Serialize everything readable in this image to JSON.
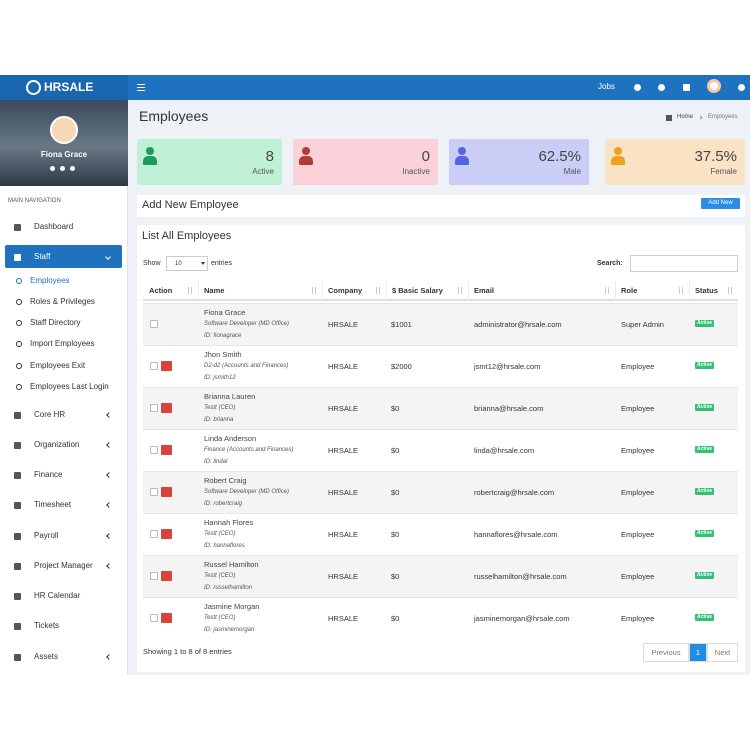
{
  "brand": "HRSALE",
  "topbar": {
    "links": [
      "Jobs"
    ]
  },
  "user": {
    "name": "Fiona Grace"
  },
  "nav": {
    "heading": "MAIN NAVIGATION",
    "items": [
      "Dashboard",
      "Staff",
      "Core HR",
      "Organization",
      "Finance",
      "Timesheet",
      "Payroll",
      "Project Manager",
      "HR Calendar",
      "Tickets",
      "Assets"
    ],
    "staff_submenu": [
      "Employees",
      "Roles & Privileges",
      "Staff Directory",
      "Import Employees",
      "Employees Exit",
      "Employees Last Login"
    ]
  },
  "page": {
    "title": "Employees",
    "breadcrumb": [
      "Home",
      "Employees"
    ]
  },
  "stats": [
    {
      "value": "8",
      "label": "Active"
    },
    {
      "value": "0",
      "label": "Inactive"
    },
    {
      "value": "62.5%",
      "label": "Male"
    },
    {
      "value": "37.5%",
      "label": "Female"
    }
  ],
  "add_panel": {
    "title": "Add New Employee",
    "button": "Add New"
  },
  "list": {
    "title": "List All Employees",
    "show": "Show",
    "entries_select": "10",
    "entries": "entries",
    "search": "Search:",
    "columns": [
      "Action",
      "Name",
      "Company",
      "$ Basic Salary",
      "Email",
      "Role",
      "Status"
    ],
    "rows": [
      [
        "Fiona Grace",
        "Software Developer (MD Office)",
        "ID: fionagrace",
        "HRSALE",
        "$1001",
        "administrator@hrsale.com",
        "Super Admin",
        "Active"
      ],
      [
        "Jhon Smith",
        "D2-d2 (Accounts and Finances)",
        "ID: jsmith12",
        "HRSALE",
        "$2000",
        "jsmt12@hrsale.com",
        "Employee",
        "Active"
      ],
      [
        "Brianna Lauren",
        "Testt (CEO)",
        "ID: brianna",
        "HRSALE",
        "$0",
        "brianna@hrsale.com",
        "Employee",
        "Active"
      ],
      [
        "Linda Anderson",
        "Finance (Accounts and Finances)",
        "ID: lindal",
        "HRSALE",
        "$0",
        "linda@hrsale.com",
        "Employee",
        "Active"
      ],
      [
        "Robert Craig",
        "Software Developer (MD Office)",
        "ID: robertcraig",
        "HRSALE",
        "$0",
        "robertcraig@hrsale.com",
        "Employee",
        "Active"
      ],
      [
        "Hannah Flores",
        "Testt (CEO)",
        "ID: hannaflores",
        "HRSALE",
        "$0",
        "hannaflores@hrsale.com",
        "Employee",
        "Active"
      ],
      [
        "Russel Hamilton",
        "Testt (CEO)",
        "ID: russelhamilton",
        "HRSALE",
        "$0",
        "russelhamilton@hrsale.com",
        "Employee",
        "Active"
      ],
      [
        "Jasmine Morgan",
        "Testt (CEO)",
        "ID: jasminemorgan",
        "HRSALE",
        "$0",
        "jasminemorgan@hrsale.com",
        "Employee",
        "Active"
      ]
    ],
    "info": "Showing 1 to 8 of 8 entries",
    "pagination": [
      "Previous",
      "1",
      "Next"
    ]
  }
}
